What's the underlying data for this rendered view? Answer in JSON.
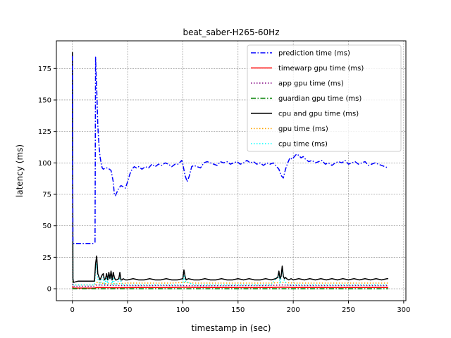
{
  "chart_data": {
    "type": "line",
    "title": "beat_saber-H265-60Hz",
    "xlabel": "timestamp in (sec)",
    "ylabel": "latency (ms)",
    "xlim": [
      -14.5,
      302
    ],
    "ylim": [
      -9.5,
      197
    ],
    "grid": true,
    "legend_position": "top-right",
    "xticks": [
      0,
      50,
      100,
      150,
      200,
      250,
      300
    ],
    "yticks": [
      0,
      25,
      50,
      75,
      100,
      125,
      150,
      175
    ],
    "series": [
      {
        "name": "prediction time (ms)",
        "color": "#0000ff",
        "linestyle": "dashdot",
        "x": [
          0,
          0.5,
          1,
          5,
          10,
          15,
          19,
          20.5,
          21,
          21.5,
          22,
          23,
          24,
          25,
          26,
          27,
          28,
          30,
          32,
          35,
          37,
          38,
          39,
          40,
          42,
          44,
          46,
          48,
          50,
          52,
          54,
          56,
          58,
          60,
          63,
          66,
          69,
          72,
          75,
          78,
          81,
          84,
          87,
          90,
          93,
          96,
          99,
          100,
          102,
          104,
          106,
          108,
          110,
          113,
          116,
          119,
          122,
          125,
          128,
          131,
          134,
          137,
          140,
          143,
          146,
          149,
          152,
          155,
          158,
          161,
          164,
          167,
          170,
          173,
          176,
          179,
          182,
          185,
          187,
          189,
          191,
          193,
          195,
          197,
          199,
          201,
          203,
          205,
          207,
          209,
          211,
          214,
          217,
          220,
          223,
          226,
          229,
          232,
          235,
          238,
          241,
          244,
          247,
          250,
          253,
          256,
          259,
          262,
          265,
          268,
          271,
          274,
          277,
          280,
          283,
          286
        ],
        "values": [
          185,
          37,
          36,
          36,
          36,
          36,
          36,
          37,
          184,
          170,
          160,
          130,
          115,
          105,
          100,
          96,
          95,
          96,
          96,
          94,
          85,
          75,
          74,
          76,
          80,
          82,
          81,
          80,
          85,
          91,
          95,
          97,
          96,
          97,
          95,
          97,
          96,
          99,
          97,
          99,
          98,
          100,
          99,
          97,
          99,
          99,
          102,
          99,
          90,
          85,
          90,
          97,
          98,
          97,
          96,
          100,
          101,
          100,
          99,
          98,
          101,
          100,
          101,
          99,
          100,
          101,
          99,
          100,
          102,
          100,
          101,
          99,
          100,
          98,
          100,
          99,
          100,
          97,
          95,
          90,
          88,
          95,
          100,
          104,
          103,
          105,
          107,
          106,
          104,
          105,
          103,
          101,
          102,
          100,
          101,
          102,
          99,
          100,
          98,
          100,
          101,
          100,
          102,
          99,
          100,
          101,
          99,
          100,
          101,
          98,
          99,
          100,
          99,
          98,
          97,
          96
        ]
      },
      {
        "name": "timewarp gpu time (ms)",
        "color": "#ff0000",
        "linestyle": "solid",
        "x": [
          0,
          0.5,
          1,
          20,
          22,
          40,
          60,
          80,
          100,
          120,
          140,
          160,
          180,
          190,
          200,
          220,
          240,
          260,
          280,
          286
        ],
        "values": [
          2,
          1,
          0.5,
          0.5,
          1,
          0.8,
          1,
          0.9,
          1.1,
          1,
          1,
          0.9,
          1,
          1.2,
          1,
          1,
          0.9,
          1,
          1,
          1
        ]
      },
      {
        "name": "app gpu time (ms)",
        "color": "#800080",
        "linestyle": "dotted",
        "x": [
          0,
          0.5,
          1,
          20,
          22,
          40,
          60,
          80,
          100,
          120,
          140,
          160,
          180,
          190,
          200,
          220,
          240,
          260,
          280,
          286
        ],
        "values": [
          4,
          3,
          2,
          2,
          3,
          2.5,
          2.5,
          2.6,
          2.5,
          2.4,
          2.5,
          2.5,
          2.6,
          3,
          2.6,
          2.5,
          2.5,
          2.6,
          2.5,
          2.5
        ]
      },
      {
        "name": "guardian gpu time (ms)",
        "color": "#008000",
        "linestyle": "dashdot",
        "x": [
          0,
          0.5,
          1,
          20,
          40,
          60,
          80,
          100,
          120,
          140,
          160,
          180,
          200,
          220,
          240,
          260,
          280,
          286
        ],
        "values": [
          0.5,
          0.2,
          0,
          0,
          0,
          0,
          0,
          0,
          0,
          0,
          0,
          0,
          0,
          0,
          0,
          0,
          0,
          0
        ]
      },
      {
        "name": "cpu and gpu time (ms)",
        "color": "#000000",
        "linestyle": "solid",
        "x": [
          0,
          0.5,
          1,
          5,
          10,
          15,
          20,
          21,
          22,
          23,
          25,
          27,
          28,
          29,
          30,
          31,
          32,
          33,
          34,
          35,
          36,
          37,
          38,
          39,
          40,
          42,
          43,
          44,
          45,
          46,
          48,
          50,
          55,
          60,
          65,
          70,
          75,
          80,
          85,
          90,
          95,
          100,
          101,
          102,
          103,
          105,
          110,
          115,
          120,
          125,
          130,
          135,
          140,
          145,
          150,
          155,
          160,
          165,
          170,
          175,
          180,
          184,
          186,
          187,
          188,
          189,
          190,
          191,
          192,
          193,
          194,
          196,
          198,
          200,
          205,
          210,
          215,
          220,
          225,
          230,
          235,
          240,
          245,
          250,
          255,
          260,
          265,
          270,
          275,
          280,
          285,
          286
        ],
        "values": [
          188,
          8,
          5,
          6,
          6,
          6,
          6,
          20,
          26,
          12,
          7,
          11,
          12,
          7,
          8,
          12,
          7,
          13,
          8,
          14,
          7,
          13,
          9,
          7,
          7,
          8,
          13,
          7,
          7,
          8,
          7,
          7,
          8,
          7,
          7,
          8,
          7,
          7,
          8,
          7,
          7,
          8,
          15,
          10,
          7,
          8,
          7,
          7,
          8,
          7,
          7,
          8,
          7,
          7,
          8,
          7,
          8,
          7,
          7,
          8,
          7,
          8,
          9,
          14,
          8,
          10,
          18,
          10,
          8,
          9,
          8,
          7,
          8,
          7,
          8,
          7,
          8,
          7,
          8,
          7,
          8,
          7,
          8,
          7,
          8,
          7,
          8,
          7,
          8,
          7,
          8,
          8
        ]
      },
      {
        "name": "gpu time (ms)",
        "color": "#ffa500",
        "linestyle": "dotted",
        "x": [
          0,
          0.5,
          1,
          20,
          22,
          30,
          40,
          50,
          60,
          70,
          80,
          90,
          100,
          110,
          120,
          130,
          140,
          150,
          160,
          170,
          180,
          190,
          200,
          210,
          220,
          230,
          240,
          250,
          260,
          270,
          280,
          286
        ],
        "values": [
          6,
          4,
          3,
          3,
          5,
          4,
          4,
          4.5,
          4.5,
          4.5,
          4.5,
          4.5,
          5,
          4.5,
          4.5,
          4.5,
          4.5,
          4.5,
          4.5,
          4.5,
          4.5,
          5,
          4.5,
          4.5,
          4.5,
          4.5,
          4.5,
          4.5,
          4.5,
          4.5,
          4.5,
          4.5
        ]
      },
      {
        "name": "cpu time (ms)",
        "color": "#00ffff",
        "linestyle": "dotted",
        "x": [
          0,
          0.5,
          1,
          10,
          20,
          21,
          22,
          23,
          25,
          27,
          28,
          29,
          31,
          32,
          33,
          35,
          36,
          37,
          38,
          40,
          43,
          45,
          50,
          60,
          70,
          80,
          90,
          100,
          101,
          102,
          110,
          120,
          130,
          140,
          150,
          160,
          170,
          180,
          187,
          188,
          190,
          192,
          195,
          200,
          210,
          220,
          230,
          240,
          250,
          260,
          270,
          280,
          286
        ],
        "values": [
          185,
          4,
          3,
          3,
          3,
          15,
          20,
          8,
          3,
          8,
          9,
          3,
          9,
          3,
          10,
          11,
          3,
          9,
          4,
          3,
          9,
          3,
          3,
          3,
          3,
          3,
          3,
          3,
          11,
          6,
          3,
          3,
          3,
          3,
          3,
          3,
          3,
          3,
          11,
          4,
          15,
          6,
          3,
          3,
          3,
          3,
          3,
          3,
          3,
          3,
          3,
          3,
          3
        ]
      }
    ]
  }
}
